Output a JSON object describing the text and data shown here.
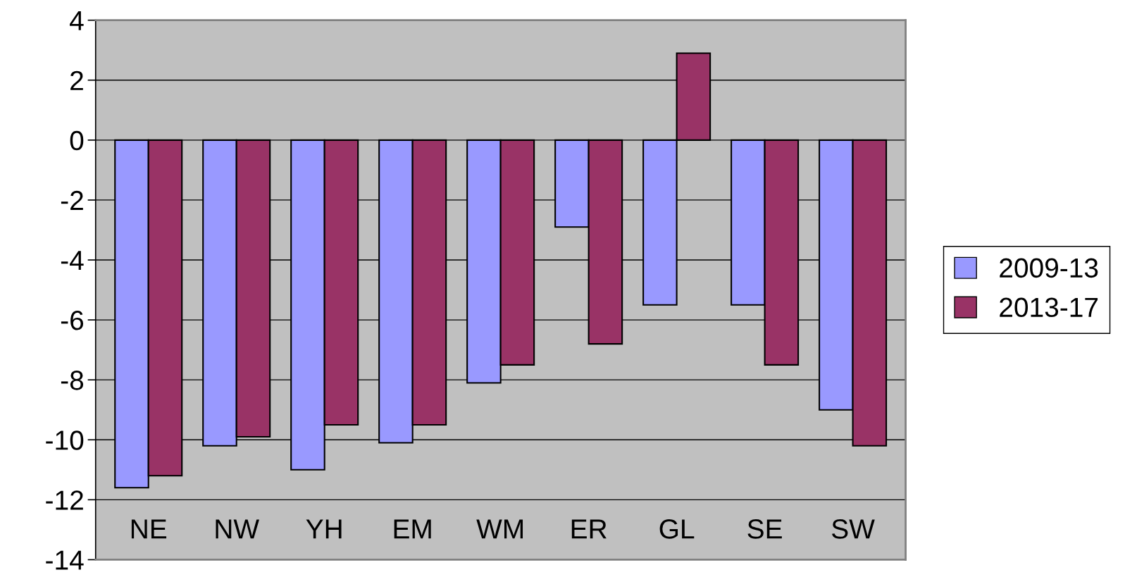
{
  "chart_data": {
    "type": "bar",
    "categories": [
      "NE",
      "NW",
      "YH",
      "EM",
      "WM",
      "ER",
      "GL",
      "SE",
      "SW"
    ],
    "series": [
      {
        "name": "2009-13",
        "color": "#9999ff",
        "values": [
          -11.6,
          -10.2,
          -11.0,
          -10.1,
          -8.1,
          -2.9,
          -5.5,
          -5.5,
          -9.0
        ]
      },
      {
        "name": "2013-17",
        "color": "#993366",
        "values": [
          -11.2,
          -9.9,
          -9.5,
          -9.5,
          -7.5,
          -6.8,
          2.9,
          -7.5,
          -10.2
        ]
      }
    ],
    "ylim": [
      -14,
      4
    ],
    "yticks": [
      -14,
      -12,
      -10,
      -8,
      -6,
      -4,
      -2,
      0,
      2,
      4
    ],
    "grid": "y",
    "legend": "right"
  }
}
